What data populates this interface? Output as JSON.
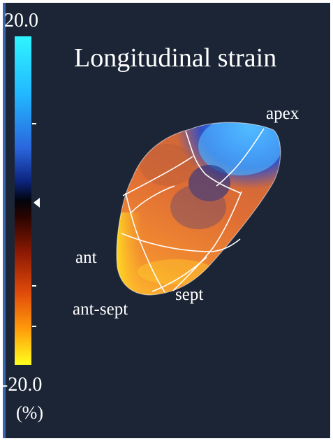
{
  "title": "Longitudinal strain",
  "scale": {
    "max_label": "20.0",
    "min_label": "-20.0",
    "unit_label": "(%)"
  },
  "segments": {
    "apex": "apex",
    "ant": "ant",
    "sept": "sept",
    "ant_sept": "ant-sept"
  },
  "colors": {
    "background": "#1b2536",
    "positive_strain": "#3a6ae6",
    "negative_strain": "#e66a32",
    "max_negative": "#ffe21c"
  }
}
